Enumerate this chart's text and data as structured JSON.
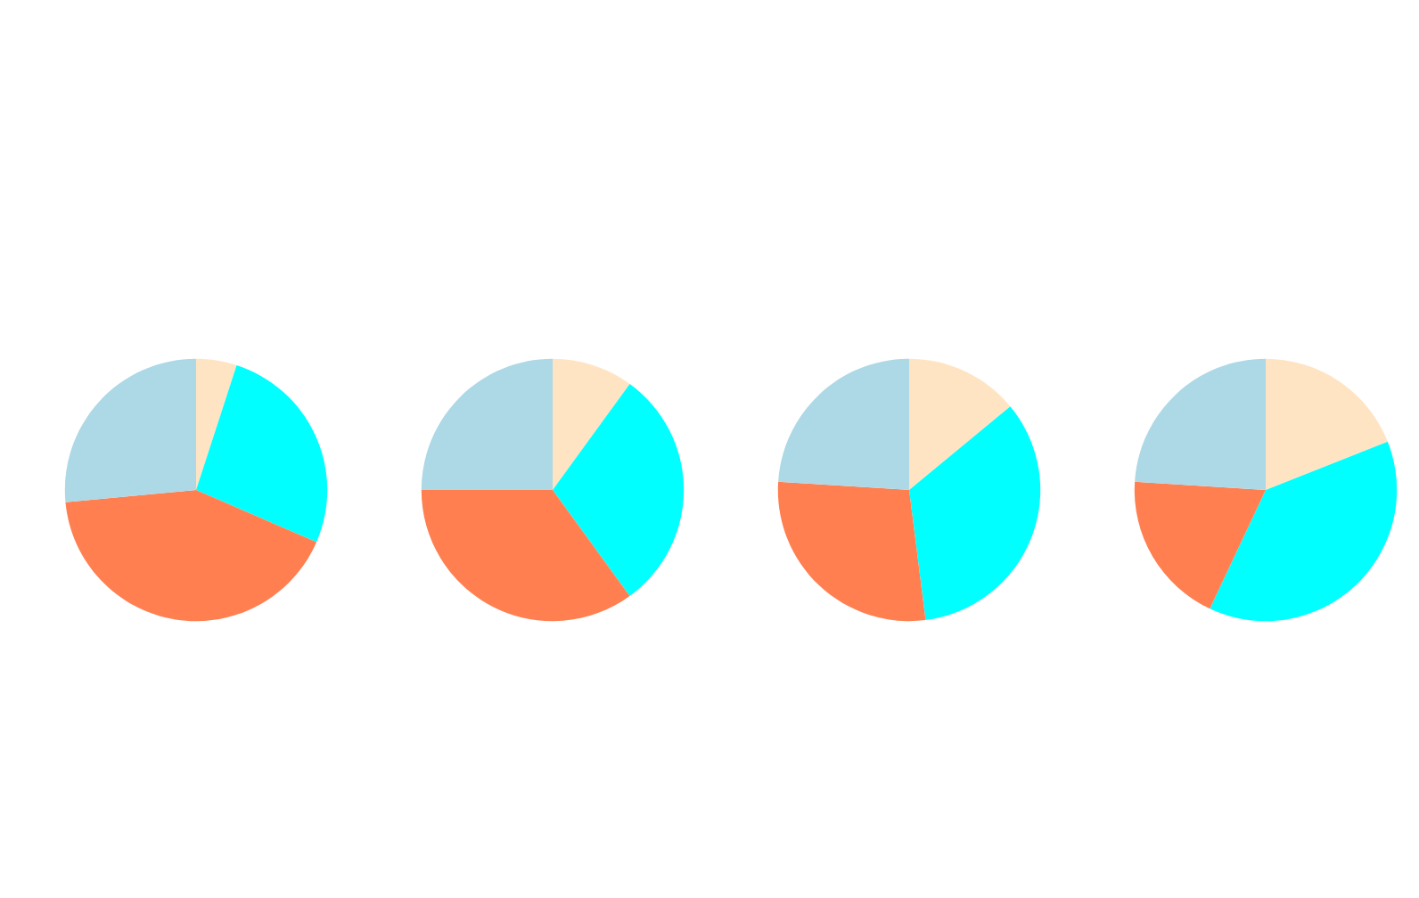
{
  "chart_data": [
    {
      "type": "pie",
      "categories": [
        null,
        null,
        null,
        null
      ],
      "values": [
        5,
        26.5,
        42,
        26.5
      ],
      "colors": [
        "#ffe4c4",
        "#00ffff",
        "#ff7f50",
        "#add8e6"
      ]
    },
    {
      "type": "pie",
      "categories": [
        null,
        null,
        null,
        null
      ],
      "values": [
        10,
        30,
        35,
        25
      ],
      "colors": [
        "#ffe4c4",
        "#00ffff",
        "#ff7f50",
        "#add8e6"
      ]
    },
    {
      "type": "pie",
      "categories": [
        null,
        null,
        null,
        null
      ],
      "values": [
        14,
        34,
        28,
        24
      ],
      "colors": [
        "#ffe4c4",
        "#00ffff",
        "#ff7f50",
        "#add8e6"
      ]
    },
    {
      "type": "pie",
      "categories": [
        null,
        null,
        null,
        null
      ],
      "values": [
        19,
        38,
        19,
        24
      ],
      "colors": [
        "#ffe4c4",
        "#00ffff",
        "#ff7f50",
        "#add8e6"
      ]
    }
  ]
}
